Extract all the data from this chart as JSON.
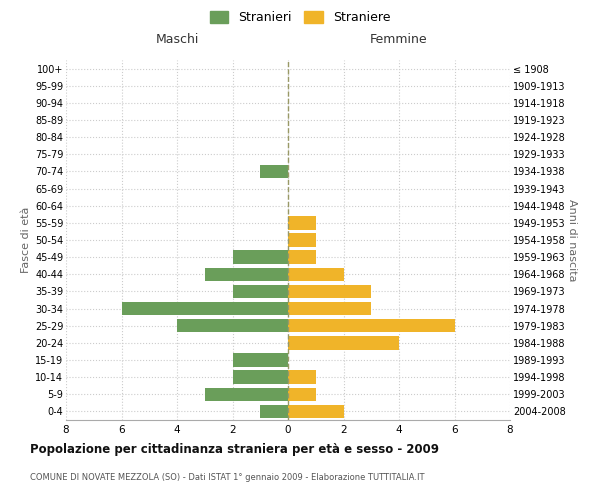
{
  "age_groups": [
    "0-4",
    "5-9",
    "10-14",
    "15-19",
    "20-24",
    "25-29",
    "30-34",
    "35-39",
    "40-44",
    "45-49",
    "50-54",
    "55-59",
    "60-64",
    "65-69",
    "70-74",
    "75-79",
    "80-84",
    "85-89",
    "90-94",
    "95-99",
    "100+"
  ],
  "birth_years": [
    "2004-2008",
    "1999-2003",
    "1994-1998",
    "1989-1993",
    "1984-1988",
    "1979-1983",
    "1974-1978",
    "1969-1973",
    "1964-1968",
    "1959-1963",
    "1954-1958",
    "1949-1953",
    "1944-1948",
    "1939-1943",
    "1934-1938",
    "1929-1933",
    "1924-1928",
    "1919-1923",
    "1914-1918",
    "1909-1913",
    "≤ 1908"
  ],
  "males": [
    1,
    3,
    2,
    2,
    0,
    4,
    6,
    2,
    3,
    2,
    0,
    0,
    0,
    0,
    1,
    0,
    0,
    0,
    0,
    0,
    0
  ],
  "females": [
    2,
    1,
    1,
    0,
    4,
    6,
    3,
    3,
    2,
    1,
    1,
    1,
    0,
    0,
    0,
    0,
    0,
    0,
    0,
    0,
    0
  ],
  "male_color": "#6a9e5a",
  "female_color": "#f0b429",
  "title": "Popolazione per cittadinanza straniera per età e sesso - 2009",
  "subtitle": "COMUNE DI NOVATE MEZZOLA (SO) - Dati ISTAT 1° gennaio 2009 - Elaborazione TUTTITALIA.IT",
  "ylabel_left": "Fasce di età",
  "ylabel_right": "Anni di nascita",
  "xlabel_left": "Maschi",
  "xlabel_right": "Femmine",
  "legend_male": "Stranieri",
  "legend_female": "Straniere",
  "xlim": 8,
  "background_color": "#ffffff",
  "grid_color": "#cccccc"
}
